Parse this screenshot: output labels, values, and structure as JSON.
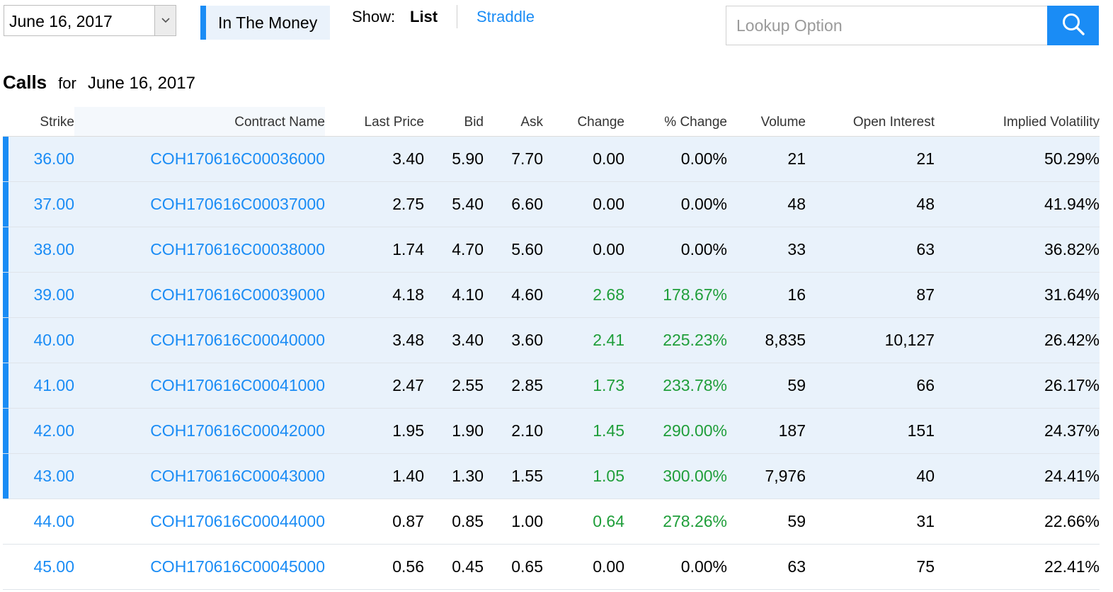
{
  "controls": {
    "expiration_date": "June 16, 2017",
    "in_the_money_label": "In The Money",
    "show_label": "Show:",
    "show_list": "List",
    "show_straddle": "Straddle",
    "lookup_placeholder": "Lookup Option",
    "search_icon": "search-icon",
    "dropdown_icon": "chevron-down-icon"
  },
  "heading": {
    "title": "Calls",
    "for": "for",
    "date": "June 16, 2017"
  },
  "colors": {
    "accent": "#1a8cf5",
    "positive": "#1f9e3a",
    "itm_highlight": "#e9f2fb"
  },
  "table": {
    "columns": [
      "Strike",
      "Contract Name",
      "Last Price",
      "Bid",
      "Ask",
      "Change",
      "% Change",
      "Volume",
      "Open Interest",
      "Implied Volatility"
    ],
    "rows": [
      {
        "strike": "36.00",
        "contract": "COH170616C00036000",
        "last": "3.40",
        "bid": "5.90",
        "ask": "7.70",
        "change": "0.00",
        "pct": "0.00%",
        "volume": "21",
        "oi": "21",
        "iv": "50.29%",
        "itm": true,
        "positive": false
      },
      {
        "strike": "37.00",
        "contract": "COH170616C00037000",
        "last": "2.75",
        "bid": "5.40",
        "ask": "6.60",
        "change": "0.00",
        "pct": "0.00%",
        "volume": "48",
        "oi": "48",
        "iv": "41.94%",
        "itm": true,
        "positive": false
      },
      {
        "strike": "38.00",
        "contract": "COH170616C00038000",
        "last": "1.74",
        "bid": "4.70",
        "ask": "5.60",
        "change": "0.00",
        "pct": "0.00%",
        "volume": "33",
        "oi": "63",
        "iv": "36.82%",
        "itm": true,
        "positive": false
      },
      {
        "strike": "39.00",
        "contract": "COH170616C00039000",
        "last": "4.18",
        "bid": "4.10",
        "ask": "4.60",
        "change": "2.68",
        "pct": "178.67%",
        "volume": "16",
        "oi": "87",
        "iv": "31.64%",
        "itm": true,
        "positive": true
      },
      {
        "strike": "40.00",
        "contract": "COH170616C00040000",
        "last": "3.48",
        "bid": "3.40",
        "ask": "3.60",
        "change": "2.41",
        "pct": "225.23%",
        "volume": "8,835",
        "oi": "10,127",
        "iv": "26.42%",
        "itm": true,
        "positive": true
      },
      {
        "strike": "41.00",
        "contract": "COH170616C00041000",
        "last": "2.47",
        "bid": "2.55",
        "ask": "2.85",
        "change": "1.73",
        "pct": "233.78%",
        "volume": "59",
        "oi": "66",
        "iv": "26.17%",
        "itm": true,
        "positive": true
      },
      {
        "strike": "42.00",
        "contract": "COH170616C00042000",
        "last": "1.95",
        "bid": "1.90",
        "ask": "2.10",
        "change": "1.45",
        "pct": "290.00%",
        "volume": "187",
        "oi": "151",
        "iv": "24.37%",
        "itm": true,
        "positive": true
      },
      {
        "strike": "43.00",
        "contract": "COH170616C00043000",
        "last": "1.40",
        "bid": "1.30",
        "ask": "1.55",
        "change": "1.05",
        "pct": "300.00%",
        "volume": "7,976",
        "oi": "40",
        "iv": "24.41%",
        "itm": true,
        "positive": true
      },
      {
        "strike": "44.00",
        "contract": "COH170616C00044000",
        "last": "0.87",
        "bid": "0.85",
        "ask": "1.00",
        "change": "0.64",
        "pct": "278.26%",
        "volume": "59",
        "oi": "31",
        "iv": "22.66%",
        "itm": false,
        "positive": true
      },
      {
        "strike": "45.00",
        "contract": "COH170616C00045000",
        "last": "0.56",
        "bid": "0.45",
        "ask": "0.65",
        "change": "0.00",
        "pct": "0.00%",
        "volume": "63",
        "oi": "75",
        "iv": "22.41%",
        "itm": false,
        "positive": false
      }
    ]
  }
}
